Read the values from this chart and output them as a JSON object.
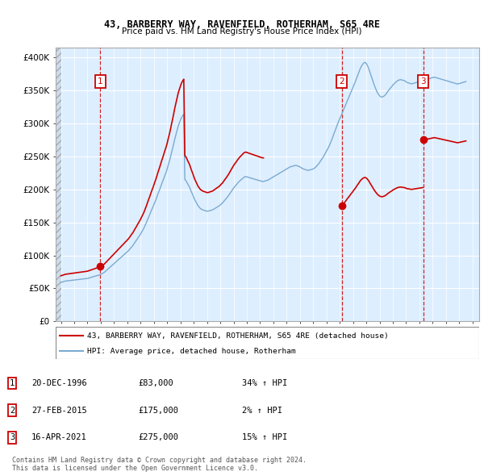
{
  "title1": "43, BARBERRY WAY, RAVENFIELD, ROTHERHAM, S65 4RE",
  "title2": "Price paid vs. HM Land Registry's House Price Index (HPI)",
  "yticks": [
    0,
    50000,
    100000,
    150000,
    200000,
    250000,
    300000,
    350000,
    400000
  ],
  "ytick_labels": [
    "£0",
    "£50K",
    "£100K",
    "£150K",
    "£200K",
    "£250K",
    "£300K",
    "£350K",
    "£400K"
  ],
  "xlim_start": 1993.6,
  "xlim_end": 2025.5,
  "ylim_min": 0,
  "ylim_max": 415000,
  "sale_dates_yr": [
    1996.96,
    2015.15,
    2021.29
  ],
  "sale_prices": [
    83000,
    175000,
    275000
  ],
  "sale_labels": [
    "1",
    "2",
    "3"
  ],
  "sale_color": "#cc0000",
  "hpi_color": "#7aaad0",
  "bg_color": "#ddeeff",
  "grid_color": "#ffffff",
  "legend_label_price": "43, BARBERRY WAY, RAVENFIELD, ROTHERHAM, S65 4RE (detached house)",
  "legend_label_hpi": "HPI: Average price, detached house, Rotherham",
  "table_rows": [
    {
      "num": "1",
      "date": "20-DEC-1996",
      "price": "£83,000",
      "change": "34% ↑ HPI"
    },
    {
      "num": "2",
      "date": "27-FEB-2015",
      "price": "£175,000",
      "change": "2% ↑ HPI"
    },
    {
      "num": "3",
      "date": "16-APR-2021",
      "price": "£275,000",
      "change": "15% ↑ HPI"
    }
  ],
  "footer": "Contains HM Land Registry data © Crown copyright and database right 2024.\nThis data is licensed under the Open Government Licence v3.0.",
  "hpi_x": [
    1994.0,
    1994.08,
    1994.17,
    1994.25,
    1994.33,
    1994.42,
    1994.5,
    1994.58,
    1994.67,
    1994.75,
    1994.83,
    1994.92,
    1995.0,
    1995.08,
    1995.17,
    1995.25,
    1995.33,
    1995.42,
    1995.5,
    1995.58,
    1995.67,
    1995.75,
    1995.83,
    1995.92,
    1996.0,
    1996.08,
    1996.17,
    1996.25,
    1996.33,
    1996.42,
    1996.5,
    1996.58,
    1996.67,
    1996.75,
    1996.83,
    1996.92,
    1997.0,
    1997.08,
    1997.17,
    1997.25,
    1997.33,
    1997.42,
    1997.5,
    1997.58,
    1997.67,
    1997.75,
    1997.83,
    1997.92,
    1998.0,
    1998.08,
    1998.17,
    1998.25,
    1998.33,
    1998.42,
    1998.5,
    1998.58,
    1998.67,
    1998.75,
    1998.83,
    1998.92,
    1999.0,
    1999.08,
    1999.17,
    1999.25,
    1999.33,
    1999.42,
    1999.5,
    1999.58,
    1999.67,
    1999.75,
    1999.83,
    1999.92,
    2000.0,
    2000.08,
    2000.17,
    2000.25,
    2000.33,
    2000.42,
    2000.5,
    2000.58,
    2000.67,
    2000.75,
    2000.83,
    2000.92,
    2001.0,
    2001.08,
    2001.17,
    2001.25,
    2001.33,
    2001.42,
    2001.5,
    2001.58,
    2001.67,
    2001.75,
    2001.83,
    2001.92,
    2002.0,
    2002.08,
    2002.17,
    2002.25,
    2002.33,
    2002.42,
    2002.5,
    2002.58,
    2002.67,
    2002.75,
    2002.83,
    2002.92,
    2003.0,
    2003.08,
    2003.17,
    2003.25,
    2003.33,
    2003.42,
    2003.5,
    2003.58,
    2003.67,
    2003.75,
    2003.83,
    2003.92,
    2004.0,
    2004.08,
    2004.17,
    2004.25,
    2004.33,
    2004.42,
    2004.5,
    2004.58,
    2004.67,
    2004.75,
    2004.83,
    2004.92,
    2005.0,
    2005.08,
    2005.17,
    2005.25,
    2005.33,
    2005.42,
    2005.5,
    2005.58,
    2005.67,
    2005.75,
    2005.83,
    2005.92,
    2006.0,
    2006.08,
    2006.17,
    2006.25,
    2006.33,
    2006.42,
    2006.5,
    2006.58,
    2006.67,
    2006.75,
    2006.83,
    2006.92,
    2007.0,
    2007.08,
    2007.17,
    2007.25,
    2007.33,
    2007.42,
    2007.5,
    2007.58,
    2007.67,
    2007.75,
    2007.83,
    2007.92,
    2008.0,
    2008.08,
    2008.17,
    2008.25,
    2008.33,
    2008.42,
    2008.5,
    2008.58,
    2008.67,
    2008.75,
    2008.83,
    2008.92,
    2009.0,
    2009.08,
    2009.17,
    2009.25,
    2009.33,
    2009.42,
    2009.5,
    2009.58,
    2009.67,
    2009.75,
    2009.83,
    2009.92,
    2010.0,
    2010.08,
    2010.17,
    2010.25,
    2010.33,
    2010.42,
    2010.5,
    2010.58,
    2010.67,
    2010.75,
    2010.83,
    2010.92,
    2011.0,
    2011.08,
    2011.17,
    2011.25,
    2011.33,
    2011.42,
    2011.5,
    2011.58,
    2011.67,
    2011.75,
    2011.83,
    2011.92,
    2012.0,
    2012.08,
    2012.17,
    2012.25,
    2012.33,
    2012.42,
    2012.5,
    2012.58,
    2012.67,
    2012.75,
    2012.83,
    2012.92,
    2013.0,
    2013.08,
    2013.17,
    2013.25,
    2013.33,
    2013.42,
    2013.5,
    2013.58,
    2013.67,
    2013.75,
    2013.83,
    2013.92,
    2014.0,
    2014.08,
    2014.17,
    2014.25,
    2014.33,
    2014.42,
    2014.5,
    2014.58,
    2014.67,
    2014.75,
    2014.83,
    2014.92,
    2015.0,
    2015.08,
    2015.17,
    2015.25,
    2015.33,
    2015.42,
    2015.5,
    2015.58,
    2015.67,
    2015.75,
    2015.83,
    2015.92,
    2016.0,
    2016.08,
    2016.17,
    2016.25,
    2016.33,
    2016.42,
    2016.5,
    2016.58,
    2016.67,
    2016.75,
    2016.83,
    2016.92,
    2017.0,
    2017.08,
    2017.17,
    2017.25,
    2017.33,
    2017.42,
    2017.5,
    2017.58,
    2017.67,
    2017.75,
    2017.83,
    2017.92,
    2018.0,
    2018.08,
    2018.17,
    2018.25,
    2018.33,
    2018.42,
    2018.5,
    2018.58,
    2018.67,
    2018.75,
    2018.83,
    2018.92,
    2019.0,
    2019.08,
    2019.17,
    2019.25,
    2019.33,
    2019.42,
    2019.5,
    2019.58,
    2019.67,
    2019.75,
    2019.83,
    2019.92,
    2020.0,
    2020.08,
    2020.17,
    2020.25,
    2020.33,
    2020.42,
    2020.5,
    2020.58,
    2020.67,
    2020.75,
    2020.83,
    2020.92,
    2021.0,
    2021.08,
    2021.17,
    2021.25,
    2021.33,
    2021.42,
    2021.5,
    2021.58,
    2021.67,
    2021.75,
    2021.83,
    2021.92,
    2022.0,
    2022.08,
    2022.17,
    2022.25,
    2022.33,
    2022.42,
    2022.5,
    2022.58,
    2022.67,
    2022.75,
    2022.83,
    2022.92,
    2023.0,
    2023.08,
    2023.17,
    2023.25,
    2023.33,
    2023.42,
    2023.5,
    2023.58,
    2023.67,
    2023.75,
    2023.83,
    2023.92,
    2024.0,
    2024.08,
    2024.17,
    2024.25,
    2024.33,
    2024.42,
    2024.5
  ],
  "hpi_y": [
    59000,
    59500,
    60000,
    60500,
    61000,
    61200,
    61400,
    61600,
    61800,
    62000,
    62200,
    62400,
    62600,
    62800,
    63000,
    63200,
    63400,
    63600,
    63800,
    64000,
    64200,
    64400,
    64600,
    64800,
    65000,
    65500,
    66000,
    66500,
    67000,
    67500,
    68000,
    68500,
    69000,
    69500,
    70000,
    70500,
    71000,
    72000,
    73000,
    74000,
    75500,
    77000,
    78500,
    80000,
    81500,
    83000,
    84500,
    86000,
    87500,
    89000,
    90500,
    92000,
    93500,
    95000,
    96500,
    98000,
    99500,
    101000,
    102500,
    104000,
    105500,
    107000,
    109000,
    111000,
    113000,
    115000,
    117500,
    120000,
    122500,
    125000,
    127500,
    130000,
    132500,
    135500,
    138500,
    141500,
    145000,
    149000,
    153000,
    157000,
    161000,
    165000,
    169000,
    173000,
    177000,
    181000,
    185500,
    190000,
    194500,
    199000,
    203500,
    208000,
    212500,
    217000,
    221500,
    226000,
    231000,
    237000,
    243000,
    249000,
    256000,
    263000,
    270000,
    277000,
    284000,
    290000,
    296000,
    301000,
    305000,
    309000,
    312000,
    314000,
    215000,
    213000,
    210000,
    207000,
    204000,
    200000,
    196000,
    192000,
    188000,
    184000,
    181000,
    178000,
    175000,
    173000,
    171000,
    170000,
    169000,
    168500,
    168000,
    167500,
    167000,
    167000,
    167500,
    168000,
    168500,
    169000,
    170000,
    171000,
    172000,
    173000,
    174000,
    175000,
    176500,
    178000,
    179500,
    181500,
    183500,
    185500,
    187500,
    189500,
    192000,
    194500,
    197000,
    199500,
    202000,
    204000,
    206000,
    208000,
    210000,
    212000,
    213500,
    215000,
    216500,
    218000,
    219000,
    219500,
    219000,
    218500,
    218000,
    217500,
    217000,
    216500,
    216000,
    215500,
    215000,
    214500,
    214000,
    213500,
    213000,
    212500,
    212000,
    212000,
    212500,
    213000,
    213500,
    214000,
    215000,
    216000,
    217000,
    218000,
    219000,
    220000,
    221000,
    222000,
    223000,
    224000,
    225000,
    226000,
    227000,
    228000,
    229000,
    230000,
    231000,
    232000,
    233000,
    234000,
    234500,
    235000,
    235500,
    236000,
    236500,
    236000,
    235500,
    235000,
    234000,
    233000,
    232000,
    231000,
    230500,
    230000,
    229500,
    229000,
    229000,
    229500,
    230000,
    230500,
    231000,
    232000,
    233500,
    235000,
    237000,
    239000,
    241500,
    244000,
    246500,
    249000,
    252000,
    255000,
    258000,
    261000,
    264500,
    268000,
    272000,
    276500,
    281000,
    285500,
    290000,
    294500,
    299000,
    303500,
    307000,
    311000,
    315000,
    319000,
    323000,
    327000,
    331000,
    335000,
    339000,
    343000,
    347000,
    351000,
    355000,
    359000,
    363000,
    367500,
    372000,
    376500,
    381000,
    385000,
    388000,
    390500,
    392000,
    392500,
    391000,
    388000,
    384000,
    379000,
    374000,
    369000,
    364000,
    359000,
    354500,
    350500,
    347000,
    344000,
    342000,
    340500,
    340000,
    340500,
    341500,
    343000,
    345000,
    347500,
    350000,
    352000,
    354000,
    356000,
    358000,
    360000,
    361500,
    363000,
    364500,
    365500,
    366000,
    366500,
    366000,
    365500,
    365000,
    364500,
    363000,
    362000,
    361500,
    361000,
    360500,
    360000,
    360500,
    361000,
    361500,
    362000,
    362500,
    363000,
    363500,
    364000,
    364500,
    365000,
    365500,
    366000,
    366500,
    367000,
    367500,
    368000,
    368500,
    369000,
    369500,
    370000,
    370000,
    369500,
    369000,
    368500,
    368000,
    367500,
    367000,
    366500,
    366000,
    365500,
    365000,
    364500,
    364000,
    363500,
    363000,
    362500,
    362000,
    361500,
    361000,
    360500,
    360000,
    360000,
    360500,
    361000,
    361500,
    362000,
    362500,
    363000,
    363500
  ],
  "price_x_seg1": [
    1994.0,
    1994.08,
    1994.17,
    1994.25,
    1994.33,
    1994.42,
    1994.5,
    1994.58,
    1994.67,
    1994.75,
    1994.83,
    1994.92,
    1995.0,
    1995.08,
    1995.17,
    1995.25,
    1995.33,
    1995.42,
    1995.5,
    1995.58,
    1995.67,
    1995.75,
    1995.83,
    1995.92,
    1996.0,
    1996.08,
    1996.17,
    1996.25,
    1996.33,
    1996.42,
    1996.5,
    1996.58,
    1996.67,
    1996.75,
    1996.83,
    1996.92,
    1997.0,
    1997.08,
    1997.17,
    1997.25,
    1997.33,
    1997.42,
    1997.5,
    1997.58,
    1997.67,
    1997.75,
    1997.83,
    1997.92,
    1998.0,
    1998.08,
    1998.17,
    1998.25,
    1998.33,
    1998.42,
    1998.5,
    1998.58,
    1998.67,
    1998.75,
    1998.83,
    1998.92,
    1999.0,
    1999.08,
    1999.17,
    1999.25,
    1999.33,
    1999.42,
    1999.5,
    1999.58,
    1999.67,
    1999.75,
    1999.83,
    1999.92,
    2000.0,
    2000.08,
    2000.17,
    2000.25,
    2000.33,
    2000.42,
    2000.5,
    2000.58,
    2000.67,
    2000.75,
    2000.83,
    2000.92,
    2001.0,
    2001.08,
    2001.17,
    2001.25,
    2001.33,
    2001.42,
    2001.5,
    2001.58,
    2001.67,
    2001.75,
    2001.83,
    2001.92,
    2002.0,
    2002.08,
    2002.17,
    2002.25,
    2002.33,
    2002.42,
    2002.5,
    2002.58,
    2002.67,
    2002.75,
    2002.83,
    2002.92,
    2003.0,
    2003.08,
    2003.17,
    2003.25,
    2003.33,
    2003.42,
    2003.5,
    2003.58,
    2003.67,
    2003.75,
    2003.83,
    2003.92,
    2004.0,
    2004.08,
    2004.17,
    2004.25,
    2004.33,
    2004.42,
    2004.5,
    2004.58,
    2004.67,
    2004.75,
    2004.83,
    2004.92,
    2005.0,
    2005.08,
    2005.17,
    2005.25,
    2005.33,
    2005.42,
    2005.5,
    2005.58,
    2005.67,
    2005.75,
    2005.83,
    2005.92,
    2006.0,
    2006.08,
    2006.17,
    2006.25,
    2006.33,
    2006.42,
    2006.5,
    2006.58,
    2006.67,
    2006.75,
    2006.83,
    2006.92,
    2007.0,
    2007.08,
    2007.17,
    2007.25,
    2007.33,
    2007.42,
    2007.5,
    2007.58,
    2007.67,
    2007.75,
    2007.83,
    2007.92,
    2008.0,
    2008.08,
    2008.17,
    2008.25,
    2008.33,
    2008.42,
    2008.5,
    2008.58,
    2008.67,
    2008.75,
    2008.83,
    2008.92,
    2009.0,
    2009.08,
    2009.17,
    2009.25
  ],
  "price_y_seg1_hpi_base": 70500,
  "price_y_seg1_sale_price": 83000,
  "price_x_seg2_start": 2015.15,
  "price_x_seg2": [
    2015.17,
    2015.25,
    2015.33,
    2015.42,
    2015.5,
    2015.58,
    2015.67,
    2015.75,
    2015.83,
    2015.92,
    2016.0,
    2016.08,
    2016.17,
    2016.25,
    2016.33,
    2016.42,
    2016.5,
    2016.58,
    2016.67,
    2016.75,
    2016.83,
    2016.92,
    2017.0,
    2017.08,
    2017.17,
    2017.25,
    2017.33,
    2017.42,
    2017.5,
    2017.58,
    2017.67,
    2017.75,
    2017.83,
    2017.92,
    2018.0,
    2018.08,
    2018.17,
    2018.25,
    2018.33,
    2018.42,
    2018.5,
    2018.58,
    2018.67,
    2018.75,
    2018.83,
    2018.92,
    2019.0,
    2019.08,
    2019.17,
    2019.25,
    2019.33,
    2019.42,
    2019.5,
    2019.58,
    2019.67,
    2019.75,
    2019.83,
    2019.92,
    2020.0,
    2020.08,
    2020.17,
    2020.25,
    2020.33,
    2020.42,
    2020.5,
    2020.58,
    2020.67,
    2020.75,
    2020.83,
    2020.92,
    2021.0,
    2021.08,
    2021.17,
    2021.25
  ],
  "price_y_seg2_hpi_base": 315000,
  "price_y_seg2_sale_price": 175000,
  "price_x_seg3_start": 2021.29,
  "price_x_seg3": [
    2021.33,
    2021.42,
    2021.5,
    2021.58,
    2021.67,
    2021.75,
    2021.83,
    2021.92,
    2022.0,
    2022.08,
    2022.17,
    2022.25,
    2022.33,
    2022.42,
    2022.5,
    2022.58,
    2022.67,
    2022.75,
    2022.83,
    2022.92,
    2023.0,
    2023.08,
    2023.17,
    2023.25,
    2023.33,
    2023.42,
    2023.5,
    2023.58,
    2023.67,
    2023.75,
    2023.83,
    2023.92,
    2024.0,
    2024.08,
    2024.17,
    2024.25,
    2024.33,
    2024.42,
    2024.5
  ],
  "price_y_seg3_hpi_base": 366500,
  "price_y_seg3_sale_price": 275000
}
